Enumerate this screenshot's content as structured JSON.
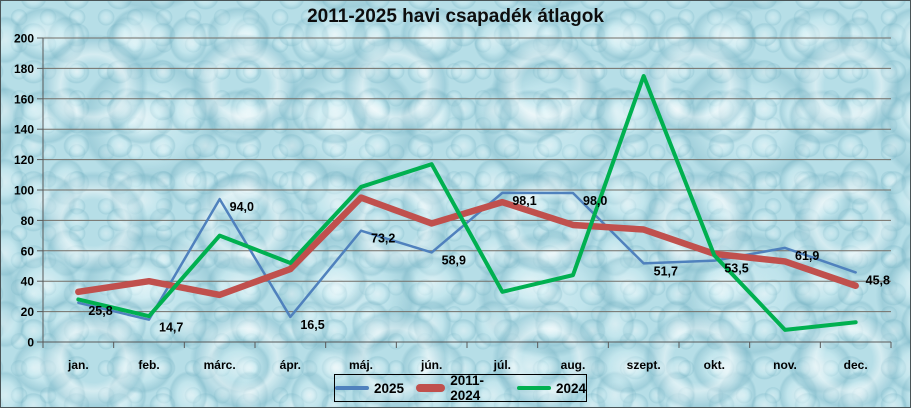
{
  "colors": {
    "series_2025": "#4f81bd",
    "series_2011_2024": "#c0504d",
    "series_2024": "#00b050",
    "gridline": "#756f68",
    "axis": "#595959",
    "text": "#000000",
    "background_base": "#b6dee7",
    "border": "#4a5558"
  },
  "chart_data": {
    "type": "line",
    "title": "2011-2025 havi csapadék átlagok",
    "categories": [
      "jan.",
      "feb.",
      "márc.",
      "ápr.",
      "máj.",
      "jún.",
      "júl.",
      "aug.",
      "szept.",
      "okt.",
      "nov.",
      "dec."
    ],
    "y_ticks": [
      0,
      20,
      40,
      60,
      80,
      100,
      120,
      140,
      160,
      180,
      200
    ],
    "ylim": [
      0,
      200
    ],
    "grid": true,
    "legend_position": "bottom-center",
    "series": [
      {
        "name": "2025",
        "color": "#4f81bd",
        "width": 2.5,
        "values": [
          25.8,
          14.7,
          94.0,
          16.5,
          73.2,
          58.9,
          98.1,
          98.0,
          51.7,
          53.5,
          61.9,
          45.8
        ],
        "labels": [
          "25,8",
          "14,7",
          "94,0",
          "16,5",
          "73,2",
          "58,9",
          "98,1",
          "98,0",
          "51,7",
          "53,5",
          "61,9",
          "45,8"
        ]
      },
      {
        "name": "2011-2024",
        "color": "#c0504d",
        "width": 6.5,
        "values": [
          33,
          40,
          31,
          48,
          95,
          78,
          92,
          77,
          74,
          58,
          53,
          37
        ]
      },
      {
        "name": "2024",
        "color": "#00b050",
        "width": 4,
        "values": [
          28,
          17,
          70,
          52,
          102,
          117,
          33,
          44,
          175,
          57,
          8,
          13
        ]
      }
    ]
  },
  "legend": {
    "items": [
      {
        "label": "2025"
      },
      {
        "label": "2011-2024"
      },
      {
        "label": "2024"
      }
    ]
  }
}
